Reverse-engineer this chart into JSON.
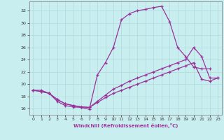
{
  "xlabel": "Windchill (Refroidissement éolien,°C)",
  "background_color": "#c8eef0",
  "grid_color": "#b0d8da",
  "line_color": "#993399",
  "x_ticks": [
    0,
    1,
    2,
    3,
    4,
    5,
    6,
    7,
    8,
    9,
    10,
    11,
    12,
    13,
    14,
    15,
    16,
    17,
    18,
    19,
    20,
    21,
    22,
    23
  ],
  "y_ticks": [
    16,
    18,
    20,
    22,
    24,
    26,
    28,
    30,
    32
  ],
  "xlim": [
    -0.5,
    23.5
  ],
  "ylim": [
    15.0,
    33.5
  ],
  "curve1_x": [
    0,
    1,
    2,
    3,
    4,
    5,
    6,
    7,
    8,
    9,
    10,
    11,
    12,
    13,
    14,
    15,
    16,
    17,
    18,
    19,
    20,
    21,
    22
  ],
  "curve1_y": [
    19.0,
    19.0,
    18.5,
    17.2,
    16.5,
    16.3,
    16.2,
    15.9,
    21.5,
    23.5,
    26.0,
    30.5,
    31.5,
    32.0,
    32.2,
    32.5,
    32.7,
    30.2,
    26.0,
    24.5,
    22.8,
    22.5,
    22.5
  ],
  "curve2_x": [
    0,
    1,
    2,
    3,
    4,
    5,
    6,
    7,
    8,
    9,
    10,
    11,
    12,
    13,
    14,
    15,
    16,
    17,
    18,
    19,
    20,
    21,
    22,
    23
  ],
  "curve2_y": [
    19.0,
    18.8,
    18.5,
    17.5,
    16.8,
    16.5,
    16.3,
    16.2,
    17.2,
    18.2,
    19.2,
    19.8,
    20.5,
    21.0,
    21.5,
    22.0,
    22.5,
    23.0,
    23.5,
    24.0,
    26.0,
    24.5,
    21.0,
    21.0
  ],
  "curve3_x": [
    0,
    1,
    2,
    3,
    4,
    5,
    6,
    7,
    8,
    9,
    10,
    11,
    12,
    13,
    14,
    15,
    16,
    17,
    18,
    19,
    20,
    21,
    22,
    23
  ],
  "curve3_y": [
    19.0,
    18.8,
    18.5,
    17.5,
    16.8,
    16.5,
    16.3,
    16.2,
    17.0,
    17.8,
    18.5,
    19.0,
    19.5,
    20.0,
    20.5,
    21.0,
    21.5,
    22.0,
    22.5,
    23.0,
    23.5,
    20.8,
    20.5,
    21.0
  ]
}
